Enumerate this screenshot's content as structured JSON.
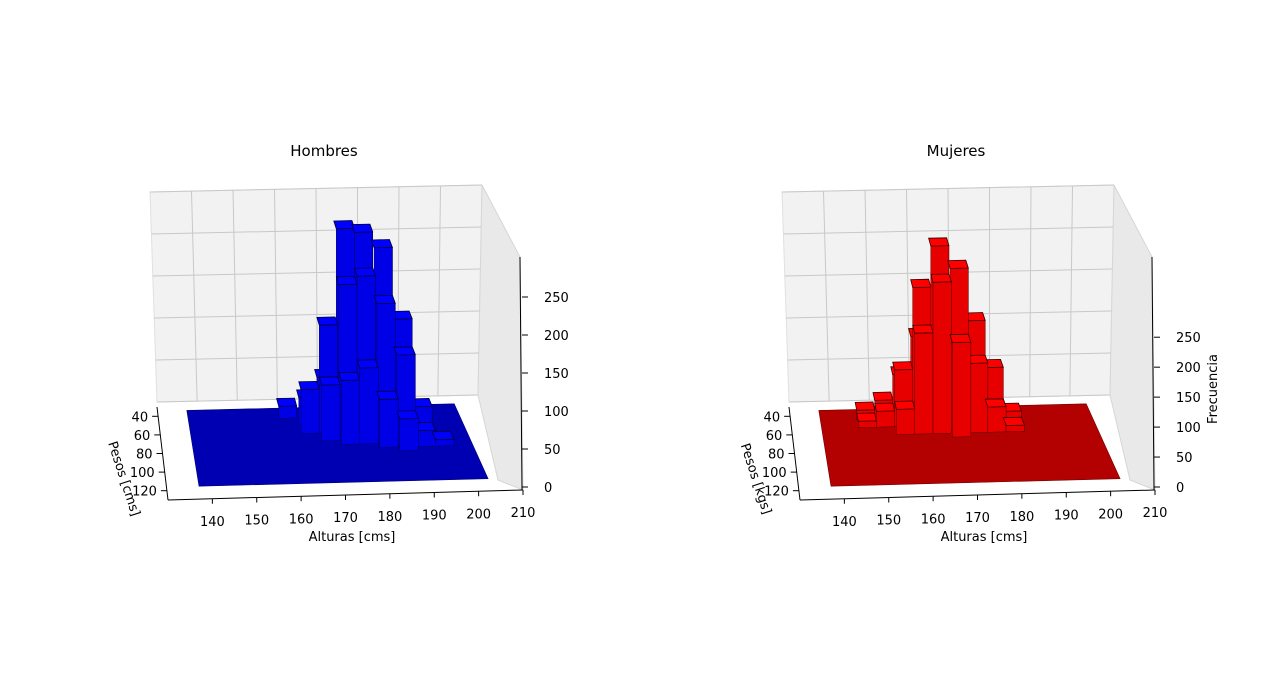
{
  "chart_data": [
    {
      "type": "bar3d",
      "title": "Hombres",
      "xlabel": "Alturas [cms]",
      "ylabel": "Pesos [cms]",
      "zlabel": "",
      "xlim": [
        130,
        210
      ],
      "ylim": [
        30,
        130
      ],
      "zlim": [
        0,
        275
      ],
      "x_ticks": [
        "140",
        "150",
        "160",
        "170",
        "180",
        "190",
        "200",
        "210"
      ],
      "y_ticks": [
        "40",
        "60",
        "80",
        "100",
        "120"
      ],
      "z_ticks": [
        "0",
        "50",
        "100",
        "150",
        "200",
        "250"
      ],
      "color": "#0000ff",
      "bars": [
        {
          "x": 160,
          "y": 40,
          "z": 15
        },
        {
          "x": 165,
          "y": 50,
          "z": 35
        },
        {
          "x": 165,
          "y": 60,
          "z": 55
        },
        {
          "x": 170,
          "y": 50,
          "z": 60
        },
        {
          "x": 170,
          "y": 60,
          "z": 135
        },
        {
          "x": 170,
          "y": 70,
          "z": 70
        },
        {
          "x": 175,
          "y": 55,
          "z": 250
        },
        {
          "x": 175,
          "y": 65,
          "z": 190
        },
        {
          "x": 175,
          "y": 75,
          "z": 80
        },
        {
          "x": 180,
          "y": 55,
          "z": 245
        },
        {
          "x": 180,
          "y": 65,
          "z": 200
        },
        {
          "x": 180,
          "y": 75,
          "z": 95
        },
        {
          "x": 185,
          "y": 60,
          "z": 230
        },
        {
          "x": 185,
          "y": 70,
          "z": 170
        },
        {
          "x": 185,
          "y": 80,
          "z": 60
        },
        {
          "x": 190,
          "y": 65,
          "z": 145
        },
        {
          "x": 190,
          "y": 75,
          "z": 110
        },
        {
          "x": 190,
          "y": 85,
          "z": 40
        },
        {
          "x": 195,
          "y": 70,
          "z": 40
        },
        {
          "x": 195,
          "y": 80,
          "z": 20
        },
        {
          "x": 200,
          "y": 80,
          "z": 8
        }
      ]
    },
    {
      "type": "bar3d",
      "title": "Mujeres",
      "xlabel": "Alturas [cms]",
      "ylabel": "Pesos [kgs]",
      "zlabel": "Frecuencia",
      "xlim": [
        130,
        210
      ],
      "ylim": [
        30,
        130
      ],
      "zlim": [
        0,
        300
      ],
      "x_ticks": [
        "140",
        "150",
        "160",
        "170",
        "180",
        "190",
        "200",
        "210"
      ],
      "y_ticks": [
        "40",
        "60",
        "80",
        "100",
        "120"
      ],
      "z_ticks": [
        "0",
        "50",
        "100",
        "150",
        "200",
        "250"
      ],
      "color": "#ff0000",
      "bars": [
        {
          "x": 145,
          "y": 40,
          "z": 15
        },
        {
          "x": 145,
          "y": 50,
          "z": 10
        },
        {
          "x": 150,
          "y": 40,
          "z": 30
        },
        {
          "x": 150,
          "y": 50,
          "z": 25
        },
        {
          "x": 155,
          "y": 40,
          "z": 70
        },
        {
          "x": 155,
          "y": 50,
          "z": 90
        },
        {
          "x": 155,
          "y": 60,
          "z": 40
        },
        {
          "x": 160,
          "y": 40,
          "z": 130
        },
        {
          "x": 160,
          "y": 50,
          "z": 220
        },
        {
          "x": 160,
          "y": 60,
          "z": 160
        },
        {
          "x": 165,
          "y": 40,
          "z": 150
        },
        {
          "x": 165,
          "y": 50,
          "z": 285
        },
        {
          "x": 165,
          "y": 60,
          "z": 240
        },
        {
          "x": 170,
          "y": 45,
          "z": 190
        },
        {
          "x": 170,
          "y": 55,
          "z": 255
        },
        {
          "x": 170,
          "y": 65,
          "z": 150
        },
        {
          "x": 175,
          "y": 50,
          "z": 165
        },
        {
          "x": 175,
          "y": 60,
          "z": 110
        },
        {
          "x": 180,
          "y": 50,
          "z": 90
        },
        {
          "x": 180,
          "y": 60,
          "z": 40
        },
        {
          "x": 185,
          "y": 50,
          "z": 20
        },
        {
          "x": 185,
          "y": 60,
          "z": 10
        }
      ]
    }
  ]
}
